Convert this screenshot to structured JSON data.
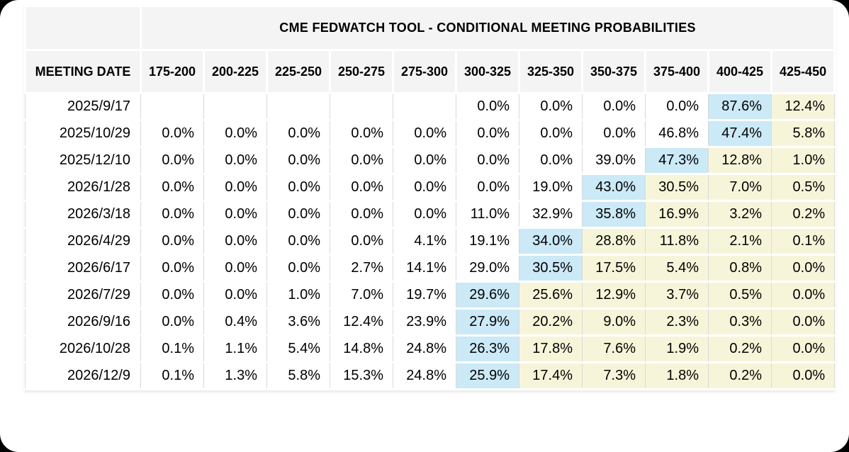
{
  "colors": {
    "highlight_blue": "#cbe9f6",
    "highlight_yellow": "#f7f5d9",
    "header_bg": "#f4f4f4",
    "grid_line": "#d9d9d9",
    "text": "#000000",
    "card_bg": "#ffffff"
  },
  "chart_data": {
    "type": "table",
    "title": "CME FEDWATCH TOOL - CONDITIONAL MEETING PROBABILITIES",
    "date_column_header": "MEETING DATE",
    "rate_bin_headers": [
      "175-200",
      "200-225",
      "225-250",
      "250-275",
      "275-300",
      "300-325",
      "325-350",
      "350-375",
      "375-400",
      "400-425",
      "425-450"
    ],
    "rows": [
      {
        "date": "2025/9/17",
        "values": [
          "",
          "",
          "",
          "",
          "",
          "0.0%",
          "0.0%",
          "0.0%",
          "0.0%",
          "87.6%",
          "12.4%"
        ],
        "highlights": [
          "",
          "",
          "",
          "",
          "",
          "",
          "",
          "",
          "",
          "blue",
          "yellow"
        ]
      },
      {
        "date": "2025/10/29",
        "values": [
          "0.0%",
          "0.0%",
          "0.0%",
          "0.0%",
          "0.0%",
          "0.0%",
          "0.0%",
          "0.0%",
          "46.8%",
          "47.4%",
          "5.8%"
        ],
        "highlights": [
          "",
          "",
          "",
          "",
          "",
          "",
          "",
          "",
          "",
          "blue",
          "yellow"
        ]
      },
      {
        "date": "2025/12/10",
        "values": [
          "0.0%",
          "0.0%",
          "0.0%",
          "0.0%",
          "0.0%",
          "0.0%",
          "0.0%",
          "39.0%",
          "47.3%",
          "12.8%",
          "1.0%"
        ],
        "highlights": [
          "",
          "",
          "",
          "",
          "",
          "",
          "",
          "",
          "blue",
          "yellow",
          "yellow"
        ]
      },
      {
        "date": "2026/1/28",
        "values": [
          "0.0%",
          "0.0%",
          "0.0%",
          "0.0%",
          "0.0%",
          "0.0%",
          "19.0%",
          "43.0%",
          "30.5%",
          "7.0%",
          "0.5%"
        ],
        "highlights": [
          "",
          "",
          "",
          "",
          "",
          "",
          "",
          "blue",
          "yellow",
          "yellow",
          "yellow"
        ]
      },
      {
        "date": "2026/3/18",
        "values": [
          "0.0%",
          "0.0%",
          "0.0%",
          "0.0%",
          "0.0%",
          "11.0%",
          "32.9%",
          "35.8%",
          "16.9%",
          "3.2%",
          "0.2%"
        ],
        "highlights": [
          "",
          "",
          "",
          "",
          "",
          "",
          "",
          "blue",
          "yellow",
          "yellow",
          "yellow"
        ]
      },
      {
        "date": "2026/4/29",
        "values": [
          "0.0%",
          "0.0%",
          "0.0%",
          "0.0%",
          "4.1%",
          "19.1%",
          "34.0%",
          "28.8%",
          "11.8%",
          "2.1%",
          "0.1%"
        ],
        "highlights": [
          "",
          "",
          "",
          "",
          "",
          "",
          "blue",
          "yellow",
          "yellow",
          "yellow",
          "yellow"
        ]
      },
      {
        "date": "2026/6/17",
        "values": [
          "0.0%",
          "0.0%",
          "0.0%",
          "2.7%",
          "14.1%",
          "29.0%",
          "30.5%",
          "17.5%",
          "5.4%",
          "0.8%",
          "0.0%"
        ],
        "highlights": [
          "",
          "",
          "",
          "",
          "",
          "",
          "blue",
          "yellow",
          "yellow",
          "yellow",
          "yellow"
        ]
      },
      {
        "date": "2026/7/29",
        "values": [
          "0.0%",
          "0.0%",
          "1.0%",
          "7.0%",
          "19.7%",
          "29.6%",
          "25.6%",
          "12.9%",
          "3.7%",
          "0.5%",
          "0.0%"
        ],
        "highlights": [
          "",
          "",
          "",
          "",
          "",
          "blue",
          "yellow",
          "yellow",
          "yellow",
          "yellow",
          "yellow"
        ]
      },
      {
        "date": "2026/9/16",
        "values": [
          "0.0%",
          "0.4%",
          "3.6%",
          "12.4%",
          "23.9%",
          "27.9%",
          "20.2%",
          "9.0%",
          "2.3%",
          "0.3%",
          "0.0%"
        ],
        "highlights": [
          "",
          "",
          "",
          "",
          "",
          "blue",
          "yellow",
          "yellow",
          "yellow",
          "yellow",
          "yellow"
        ]
      },
      {
        "date": "2026/10/28",
        "values": [
          "0.1%",
          "1.1%",
          "5.4%",
          "14.8%",
          "24.8%",
          "26.3%",
          "17.8%",
          "7.6%",
          "1.9%",
          "0.2%",
          "0.0%"
        ],
        "highlights": [
          "",
          "",
          "",
          "",
          "",
          "blue",
          "yellow",
          "yellow",
          "yellow",
          "yellow",
          "yellow"
        ]
      },
      {
        "date": "2026/12/9",
        "values": [
          "0.1%",
          "1.3%",
          "5.8%",
          "15.3%",
          "24.8%",
          "25.9%",
          "17.4%",
          "7.3%",
          "1.8%",
          "0.2%",
          "0.0%"
        ],
        "highlights": [
          "",
          "",
          "",
          "",
          "",
          "blue",
          "yellow",
          "yellow",
          "yellow",
          "yellow",
          "yellow"
        ]
      }
    ]
  }
}
